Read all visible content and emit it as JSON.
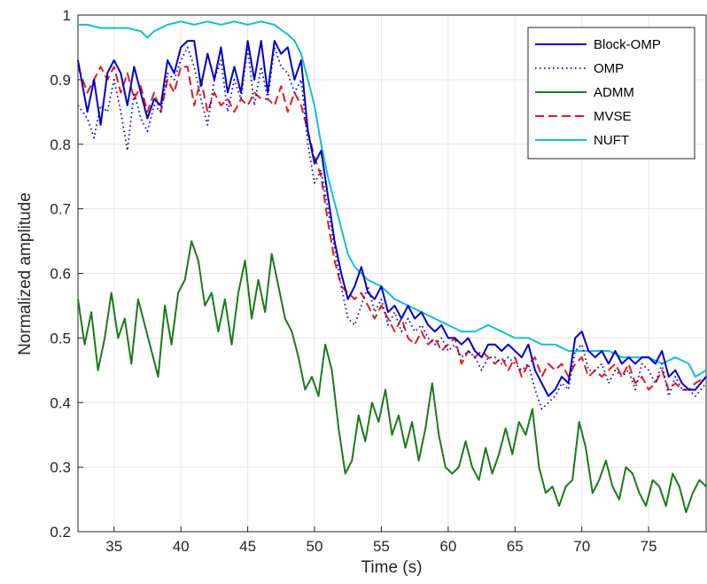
{
  "chart_data": {
    "type": "line",
    "xlabel": "Time (s)",
    "ylabel": "Normalized amplitude",
    "xlim": [
      32.3,
      79.3
    ],
    "ylim": [
      0.2,
      1.0
    ],
    "xticks": [
      35,
      40,
      45,
      50,
      55,
      60,
      65,
      70,
      75
    ],
    "xtick_labels": [
      "35",
      "40",
      "45",
      "50",
      "55",
      "60",
      "65",
      "70",
      "75"
    ],
    "yticks": [
      0.2,
      0.3,
      0.4,
      0.5,
      0.6,
      0.7,
      0.8,
      0.9,
      1.0
    ],
    "ytick_labels": [
      "0.2",
      "0.3",
      "0.4",
      "0.5",
      "0.6",
      "0.7",
      "0.8",
      "0.9",
      "1"
    ],
    "grid": true,
    "legend_position": "top-right",
    "series": [
      {
        "name": "Block-OMP",
        "color": "#0000cc",
        "style": "solid",
        "x": [
          32.3,
          33,
          33.5,
          34,
          34.5,
          35,
          35.5,
          36,
          36.5,
          37,
          37.5,
          38,
          38.5,
          39,
          39.5,
          40,
          40.5,
          41,
          41.5,
          42,
          42.5,
          43,
          43.5,
          44,
          44.5,
          45,
          45.5,
          46,
          46.5,
          47,
          47.5,
          48,
          48.5,
          49,
          49.5,
          50,
          50.5,
          51,
          51.5,
          52,
          52.5,
          53,
          53.5,
          54,
          54.5,
          55,
          55.5,
          56,
          56.5,
          57,
          57.5,
          58,
          58.5,
          59,
          59.5,
          60,
          60.5,
          61,
          61.5,
          62,
          62.5,
          63,
          63.5,
          64,
          64.5,
          65,
          65.5,
          66,
          66.5,
          67,
          67.5,
          68,
          68.5,
          69,
          69.5,
          70,
          70.5,
          71,
          71.5,
          72,
          72.5,
          73,
          73.5,
          74,
          74.5,
          75,
          75.5,
          76,
          76.5,
          77,
          77.5,
          78,
          78.5,
          79.3
        ],
        "y": [
          0.93,
          0.85,
          0.9,
          0.83,
          0.91,
          0.93,
          0.91,
          0.86,
          0.92,
          0.88,
          0.84,
          0.87,
          0.86,
          0.93,
          0.91,
          0.95,
          0.96,
          0.96,
          0.89,
          0.94,
          0.9,
          0.95,
          0.88,
          0.92,
          0.88,
          0.96,
          0.9,
          0.96,
          0.88,
          0.96,
          0.94,
          0.95,
          0.9,
          0.93,
          0.82,
          0.77,
          0.79,
          0.72,
          0.65,
          0.6,
          0.56,
          0.58,
          0.61,
          0.57,
          0.56,
          0.58,
          0.54,
          0.55,
          0.53,
          0.55,
          0.53,
          0.54,
          0.52,
          0.51,
          0.52,
          0.5,
          0.5,
          0.49,
          0.5,
          0.48,
          0.47,
          0.49,
          0.49,
          0.48,
          0.49,
          0.48,
          0.47,
          0.49,
          0.45,
          0.43,
          0.41,
          0.42,
          0.44,
          0.43,
          0.5,
          0.51,
          0.48,
          0.47,
          0.48,
          0.46,
          0.48,
          0.46,
          0.47,
          0.46,
          0.47,
          0.47,
          0.46,
          0.48,
          0.44,
          0.45,
          0.43,
          0.42,
          0.42,
          0.44
        ]
      },
      {
        "name": "OMP",
        "color": "#0000cc",
        "style": "dotted",
        "x": [
          32.3,
          33,
          33.5,
          34,
          34.5,
          35,
          35.5,
          36,
          36.5,
          37,
          37.5,
          38,
          38.5,
          39,
          39.5,
          40,
          40.5,
          41,
          41.5,
          42,
          42.5,
          43,
          43.5,
          44,
          44.5,
          45,
          45.5,
          46,
          46.5,
          47,
          47.5,
          48,
          48.5,
          49,
          49.5,
          50,
          50.5,
          51,
          51.5,
          52,
          52.5,
          53,
          53.5,
          54,
          54.5,
          55,
          55.5,
          56,
          56.5,
          57,
          57.5,
          58,
          58.5,
          59,
          59.5,
          60,
          60.5,
          61,
          61.5,
          62,
          62.5,
          63,
          63.5,
          64,
          64.5,
          65,
          65.5,
          66,
          66.5,
          67,
          67.5,
          68,
          68.5,
          69,
          69.5,
          70,
          70.5,
          71,
          71.5,
          72,
          72.5,
          73,
          73.5,
          74,
          74.5,
          75,
          75.5,
          76,
          76.5,
          77,
          77.5,
          78,
          78.5,
          79.3
        ],
        "y": [
          0.86,
          0.84,
          0.81,
          0.86,
          0.85,
          0.9,
          0.85,
          0.79,
          0.88,
          0.84,
          0.82,
          0.86,
          0.85,
          0.91,
          0.9,
          0.93,
          0.95,
          0.92,
          0.87,
          0.83,
          0.9,
          0.93,
          0.85,
          0.9,
          0.87,
          0.95,
          0.86,
          0.92,
          0.87,
          0.95,
          0.92,
          0.91,
          0.88,
          0.9,
          0.8,
          0.74,
          0.76,
          0.7,
          0.64,
          0.58,
          0.53,
          0.52,
          0.55,
          0.58,
          0.54,
          0.56,
          0.52,
          0.54,
          0.51,
          0.53,
          0.51,
          0.52,
          0.5,
          0.49,
          0.5,
          0.48,
          0.49,
          0.47,
          0.48,
          0.47,
          0.45,
          0.47,
          0.47,
          0.46,
          0.47,
          0.46,
          0.45,
          0.46,
          0.42,
          0.39,
          0.4,
          0.41,
          0.43,
          0.42,
          0.48,
          0.49,
          0.45,
          0.45,
          0.46,
          0.43,
          0.45,
          0.44,
          0.45,
          0.42,
          0.46,
          0.45,
          0.43,
          0.46,
          0.41,
          0.44,
          0.42,
          0.42,
          0.41,
          0.43
        ]
      },
      {
        "name": "ADMM",
        "color": "#1a7a1a",
        "style": "solid",
        "x": [
          32.3,
          32.8,
          33.3,
          33.8,
          34.3,
          34.8,
          35.3,
          35.8,
          36.3,
          36.8,
          37.3,
          37.8,
          38.3,
          38.8,
          39.3,
          39.8,
          40.3,
          40.8,
          41.3,
          41.8,
          42.3,
          42.8,
          43.3,
          43.8,
          44.3,
          44.8,
          45.3,
          45.8,
          46.3,
          46.8,
          47.3,
          47.8,
          48.3,
          48.8,
          49.3,
          49.8,
          50.3,
          50.8,
          51.3,
          51.8,
          52.3,
          52.8,
          53.3,
          53.8,
          54.3,
          54.8,
          55.3,
          55.8,
          56.3,
          56.8,
          57.3,
          57.8,
          58.3,
          58.8,
          59.3,
          59.8,
          60.3,
          60.8,
          61.3,
          61.8,
          62.3,
          62.8,
          63.3,
          63.8,
          64.3,
          64.8,
          65.3,
          65.8,
          66.3,
          66.8,
          67.3,
          67.8,
          68.3,
          68.8,
          69.3,
          69.8,
          70.3,
          70.8,
          71.3,
          71.8,
          72.3,
          72.8,
          73.3,
          73.8,
          74.3,
          74.8,
          75.3,
          75.8,
          76.3,
          76.8,
          77.3,
          77.8,
          78.3,
          78.8,
          79.3
        ],
        "y": [
          0.56,
          0.49,
          0.54,
          0.45,
          0.5,
          0.57,
          0.5,
          0.53,
          0.46,
          0.56,
          0.52,
          0.48,
          0.44,
          0.55,
          0.49,
          0.57,
          0.59,
          0.65,
          0.62,
          0.55,
          0.57,
          0.51,
          0.56,
          0.49,
          0.57,
          0.62,
          0.53,
          0.59,
          0.54,
          0.63,
          0.58,
          0.53,
          0.51,
          0.47,
          0.42,
          0.44,
          0.41,
          0.49,
          0.45,
          0.36,
          0.29,
          0.31,
          0.38,
          0.34,
          0.4,
          0.37,
          0.42,
          0.35,
          0.38,
          0.33,
          0.37,
          0.31,
          0.36,
          0.43,
          0.35,
          0.3,
          0.29,
          0.3,
          0.34,
          0.3,
          0.28,
          0.33,
          0.29,
          0.32,
          0.36,
          0.32,
          0.37,
          0.35,
          0.39,
          0.3,
          0.26,
          0.27,
          0.24,
          0.27,
          0.28,
          0.37,
          0.33,
          0.26,
          0.28,
          0.31,
          0.27,
          0.25,
          0.3,
          0.29,
          0.26,
          0.24,
          0.28,
          0.27,
          0.24,
          0.29,
          0.27,
          0.23,
          0.26,
          0.28,
          0.27
        ]
      },
      {
        "name": "MVSE",
        "color": "#e31a1c",
        "style": "dashed",
        "x": [
          32.3,
          33,
          33.5,
          34,
          34.5,
          35,
          35.5,
          36,
          36.5,
          37,
          37.5,
          38,
          38.5,
          39,
          39.5,
          40,
          40.5,
          41,
          41.5,
          42,
          42.5,
          43,
          43.5,
          44,
          44.5,
          45,
          45.5,
          46,
          46.5,
          47,
          47.5,
          48,
          48.5,
          49,
          49.5,
          50,
          50.5,
          51,
          51.5,
          52,
          52.5,
          53,
          53.5,
          54,
          54.5,
          55,
          55.5,
          56,
          56.5,
          57,
          57.5,
          58,
          58.5,
          59,
          59.5,
          60,
          60.5,
          61,
          61.5,
          62,
          62.5,
          63,
          63.5,
          64,
          64.5,
          65,
          65.5,
          66,
          66.5,
          67,
          67.5,
          68,
          68.5,
          69,
          69.5,
          70,
          70.5,
          71,
          71.5,
          72,
          72.5,
          73,
          73.5,
          74,
          74.5,
          75,
          75.5,
          76,
          76.5,
          77,
          77.5,
          78,
          78.5,
          79.3
        ],
        "y": [
          0.92,
          0.88,
          0.9,
          0.92,
          0.9,
          0.92,
          0.88,
          0.91,
          0.87,
          0.89,
          0.85,
          0.88,
          0.85,
          0.9,
          0.88,
          0.92,
          0.92,
          0.86,
          0.9,
          0.85,
          0.88,
          0.86,
          0.87,
          0.85,
          0.87,
          0.86,
          0.88,
          0.87,
          0.87,
          0.86,
          0.89,
          0.85,
          0.88,
          0.86,
          0.82,
          0.78,
          0.75,
          0.68,
          0.62,
          0.58,
          0.57,
          0.56,
          0.57,
          0.55,
          0.53,
          0.55,
          0.53,
          0.51,
          0.53,
          0.5,
          0.49,
          0.51,
          0.49,
          0.5,
          0.48,
          0.49,
          0.5,
          0.46,
          0.48,
          0.47,
          0.48,
          0.47,
          0.46,
          0.47,
          0.45,
          0.47,
          0.44,
          0.46,
          0.47,
          0.44,
          0.46,
          0.45,
          0.46,
          0.44,
          0.46,
          0.47,
          0.44,
          0.45,
          0.44,
          0.45,
          0.46,
          0.44,
          0.46,
          0.43,
          0.44,
          0.42,
          0.43,
          0.45,
          0.42,
          0.43,
          0.42,
          0.42,
          0.43,
          0.44
        ]
      },
      {
        "name": "NUFT",
        "color": "#17becf",
        "style": "solid",
        "x": [
          32.3,
          33,
          34,
          35,
          36,
          37,
          37.5,
          38,
          39,
          40,
          41,
          42,
          43,
          44,
          45,
          46,
          47,
          48,
          48.5,
          49,
          49.5,
          50,
          50.5,
          51,
          51.5,
          52,
          52.5,
          53,
          53.5,
          54,
          55,
          56,
          57,
          58,
          59,
          60,
          61,
          62,
          63,
          64,
          65,
          66,
          67,
          68,
          69,
          70,
          71,
          72,
          73,
          74,
          75,
          76,
          77,
          78,
          78.5,
          79.3
        ],
        "y": [
          0.985,
          0.985,
          0.98,
          0.98,
          0.98,
          0.975,
          0.965,
          0.975,
          0.985,
          0.99,
          0.985,
          0.99,
          0.985,
          0.99,
          0.985,
          0.99,
          0.985,
          0.97,
          0.96,
          0.94,
          0.9,
          0.86,
          0.8,
          0.75,
          0.71,
          0.67,
          0.63,
          0.61,
          0.6,
          0.59,
          0.58,
          0.56,
          0.55,
          0.54,
          0.53,
          0.52,
          0.51,
          0.51,
          0.52,
          0.51,
          0.5,
          0.5,
          0.49,
          0.49,
          0.48,
          0.48,
          0.48,
          0.48,
          0.47,
          0.47,
          0.47,
          0.46,
          0.47,
          0.46,
          0.44,
          0.45
        ]
      }
    ]
  }
}
